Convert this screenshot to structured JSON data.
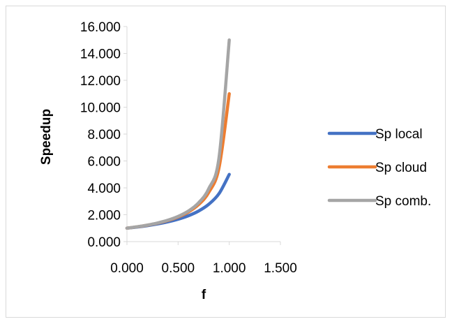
{
  "chart_data": {
    "type": "scatter",
    "title": "",
    "xlabel": "f",
    "ylabel": "Speedup",
    "xlim": [
      0,
      1.5
    ],
    "ylim": [
      0,
      16
    ],
    "x_ticks": [
      "0.000",
      "0.500",
      "1.000",
      "1.500"
    ],
    "y_ticks": [
      "0.000",
      "2.000",
      "4.000",
      "6.000",
      "8.000",
      "10.000",
      "12.000",
      "14.000",
      "16.000"
    ],
    "grid": false,
    "legend_position": "right",
    "series": [
      {
        "name": "Sp local",
        "color": "#4472c4",
        "points": [
          [
            0,
            1.0
          ],
          [
            0.1,
            1.087
          ],
          [
            0.2,
            1.19
          ],
          [
            0.3,
            1.316
          ],
          [
            0.4,
            1.471
          ],
          [
            0.5,
            1.667
          ],
          [
            0.6,
            1.923
          ],
          [
            0.7,
            2.273
          ],
          [
            0.8,
            2.778
          ],
          [
            0.9,
            3.571
          ],
          [
            1.0,
            5.0
          ]
        ]
      },
      {
        "name": "Sp cloud",
        "color": "#ed7d31",
        "points": [
          [
            0,
            1.0
          ],
          [
            0.1,
            1.1
          ],
          [
            0.2,
            1.222
          ],
          [
            0.3,
            1.375
          ],
          [
            0.4,
            1.571
          ],
          [
            0.5,
            1.833
          ],
          [
            0.6,
            2.2
          ],
          [
            0.7,
            2.75
          ],
          [
            0.8,
            3.667
          ],
          [
            0.9,
            5.5
          ],
          [
            1.0,
            11.0
          ]
        ]
      },
      {
        "name": "Sp comb.",
        "color": "#a5a5a5",
        "points": [
          [
            0,
            1.0
          ],
          [
            0.1,
            1.103
          ],
          [
            0.2,
            1.23
          ],
          [
            0.3,
            1.389
          ],
          [
            0.4,
            1.596
          ],
          [
            0.5,
            1.875
          ],
          [
            0.6,
            2.273
          ],
          [
            0.7,
            2.885
          ],
          [
            0.8,
            3.947
          ],
          [
            0.9,
            6.25
          ],
          [
            1.0,
            15.0
          ]
        ]
      }
    ]
  }
}
